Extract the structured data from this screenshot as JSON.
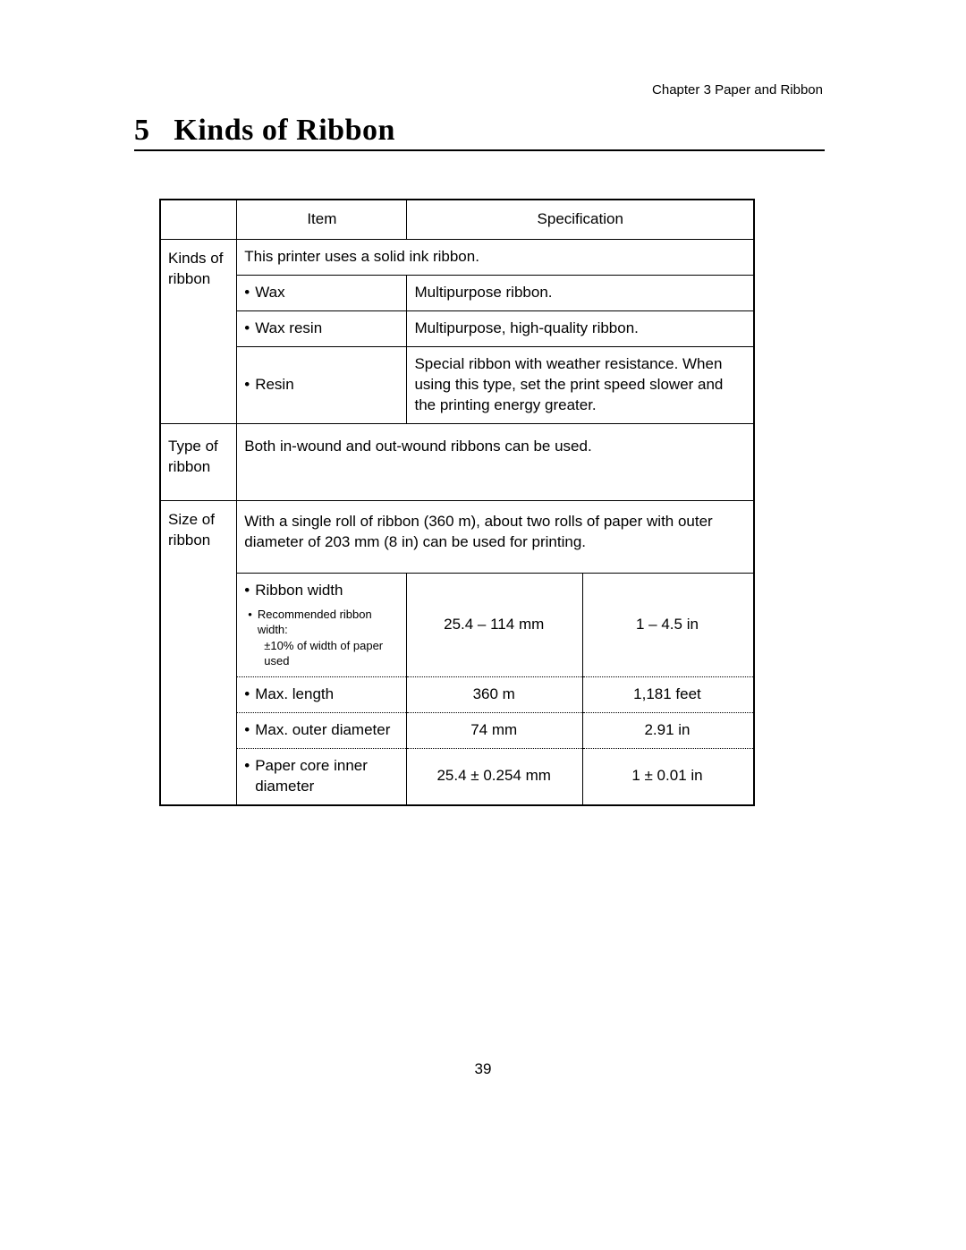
{
  "chapter_header": "Chapter 3    Paper and Ribbon",
  "section": {
    "number": "5",
    "title": "Kinds of Ribbon"
  },
  "table": {
    "headers": {
      "item": "Item",
      "spec": "Specification"
    },
    "rowhdr": {
      "kinds": "Kinds of ribbon",
      "type": "Type of ribbon",
      "size": "Size of ribbon"
    },
    "kinds": {
      "intro": "This printer uses a solid ink ribbon.",
      "items": [
        {
          "name": "Wax",
          "spec": "Multipurpose ribbon."
        },
        {
          "name": "Wax resin",
          "spec": "Multipurpose, high-quality ribbon."
        },
        {
          "name": "Resin",
          "spec": "Special ribbon with weather resistance.  When using this type, set the print speed slower and the printing energy greater."
        }
      ]
    },
    "type": {
      "text": "Both in-wound and out-wound ribbons can be used."
    },
    "size": {
      "intro": "With a single roll of ribbon (360 m), about two rolls of paper with outer diameter of 203 mm (8 in) can be used for printing.",
      "rows": [
        {
          "label": "Ribbon width",
          "note_label": "Recommended ribbon width:",
          "note_text": "±10% of width of paper used",
          "metric": "25.4 – 114 mm",
          "imperial": "1 – 4.5 in"
        },
        {
          "label": "Max.  length",
          "metric": "360 m",
          "imperial": "1,181 feet"
        },
        {
          "label": "Max.  outer  diameter",
          "metric": "74 mm",
          "imperial": "2.91 in"
        },
        {
          "label": "Paper core inner diameter",
          "metric": "25.4 ± 0.254 mm",
          "imperial": "1 ± 0.01 in"
        }
      ]
    }
  },
  "page_number": "39",
  "bullet": "•"
}
